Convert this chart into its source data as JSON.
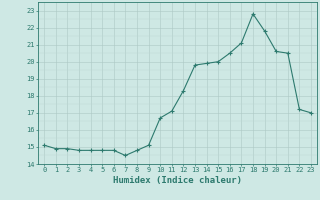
{
  "x": [
    0,
    1,
    2,
    3,
    4,
    5,
    6,
    7,
    8,
    9,
    10,
    11,
    12,
    13,
    14,
    15,
    16,
    17,
    18,
    19,
    20,
    21,
    22,
    23
  ],
  "y": [
    15.1,
    14.9,
    14.9,
    14.8,
    14.8,
    14.8,
    14.8,
    14.5,
    14.8,
    15.1,
    16.7,
    17.1,
    18.3,
    19.8,
    19.9,
    20.0,
    20.5,
    21.1,
    22.8,
    21.8,
    20.6,
    20.5,
    17.2,
    17.0
  ],
  "line_color": "#2d7a6e",
  "marker": "+",
  "marker_size": 3.5,
  "background_color": "#cee8e4",
  "grid_color_minor": "#bdd8d4",
  "grid_color_major": "#adc8c4",
  "xlabel": "Humidex (Indice chaleur)",
  "xlim": [
    -0.5,
    23.5
  ],
  "ylim": [
    14.0,
    23.5
  ],
  "yticks": [
    14,
    15,
    16,
    17,
    18,
    19,
    20,
    21,
    22,
    23
  ],
  "xticks": [
    0,
    1,
    2,
    3,
    4,
    5,
    6,
    7,
    8,
    9,
    10,
    11,
    12,
    13,
    14,
    15,
    16,
    17,
    18,
    19,
    20,
    21,
    22,
    23
  ],
  "tick_color": "#2d7a6e",
  "tick_fontsize": 5.0,
  "xlabel_fontsize": 6.5,
  "axis_color": "#2d7a6e",
  "linewidth": 0.8,
  "markeredgewidth": 0.8
}
